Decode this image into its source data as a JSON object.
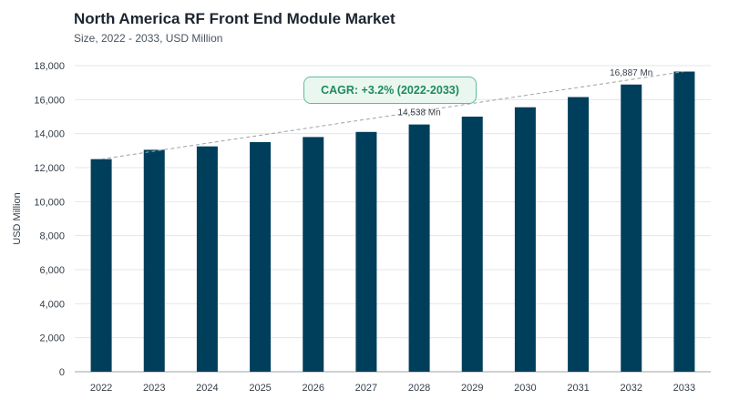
{
  "header": {
    "title": "North America RF Front End Module Market",
    "subtitle": "Size, 2022 - 2033, USD Million"
  },
  "cagr_badge": "CAGR: +3.2% (2022-2033)",
  "chart_data": {
    "type": "bar",
    "categories": [
      "2022",
      "2023",
      "2024",
      "2025",
      "2026",
      "2027",
      "2028",
      "2029",
      "2030",
      "2031",
      "2032",
      "2033"
    ],
    "values": [
      12500,
      13050,
      13250,
      13500,
      13800,
      14100,
      14538,
      15000,
      15550,
      16150,
      16887,
      17650
    ],
    "ylabel": "USD Million",
    "ylim": [
      0,
      18000
    ],
    "yticks": [
      0,
      2000,
      4000,
      6000,
      8000,
      10000,
      12000,
      14000,
      16000,
      18000
    ],
    "ytick_labels": [
      "0",
      "2,000",
      "4,000",
      "6,000",
      "8,000",
      "10,000",
      "12,000",
      "14,000",
      "16,000",
      "18,000"
    ],
    "annotations": [
      {
        "category": "2028",
        "text": "14,538 Mn"
      },
      {
        "category": "2032",
        "text": "16,887 Mn"
      }
    ],
    "trend_line": {
      "from": "2022",
      "to": "2033"
    },
    "grid": "horizontal",
    "bar_color": "#003f5c"
  }
}
